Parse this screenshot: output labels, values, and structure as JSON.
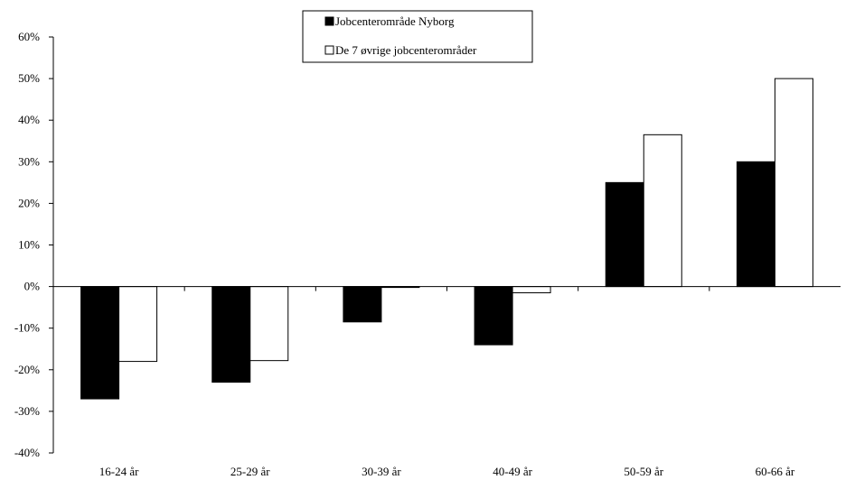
{
  "chart_data": {
    "type": "bar",
    "categories": [
      "16-24 år",
      "25-29 år",
      "30-39 år",
      "40-49 år",
      "50-59 år",
      "60-66 år"
    ],
    "series": [
      {
        "name": "Jobcenterområde Nyborg",
        "values": [
          -27,
          -23,
          -8.5,
          -14,
          25,
          30
        ],
        "color": "#000000"
      },
      {
        "name": "De 7 øvrige jobcenterområder",
        "values": [
          -18,
          -17.8,
          -0.2,
          -1.5,
          36.5,
          50
        ],
        "color": "#ffffff"
      }
    ],
    "ylim": [
      -40,
      60
    ],
    "y_ticks": [
      -40,
      -30,
      -20,
      -10,
      0,
      10,
      20,
      30,
      40,
      50,
      60
    ],
    "y_tick_labels": [
      "-40%",
      "-30%",
      "-20%",
      "-10%",
      "0%",
      "10%",
      "20%",
      "30%",
      "40%",
      "50%",
      "60%"
    ],
    "legend_position": "top-center",
    "grid": false
  }
}
